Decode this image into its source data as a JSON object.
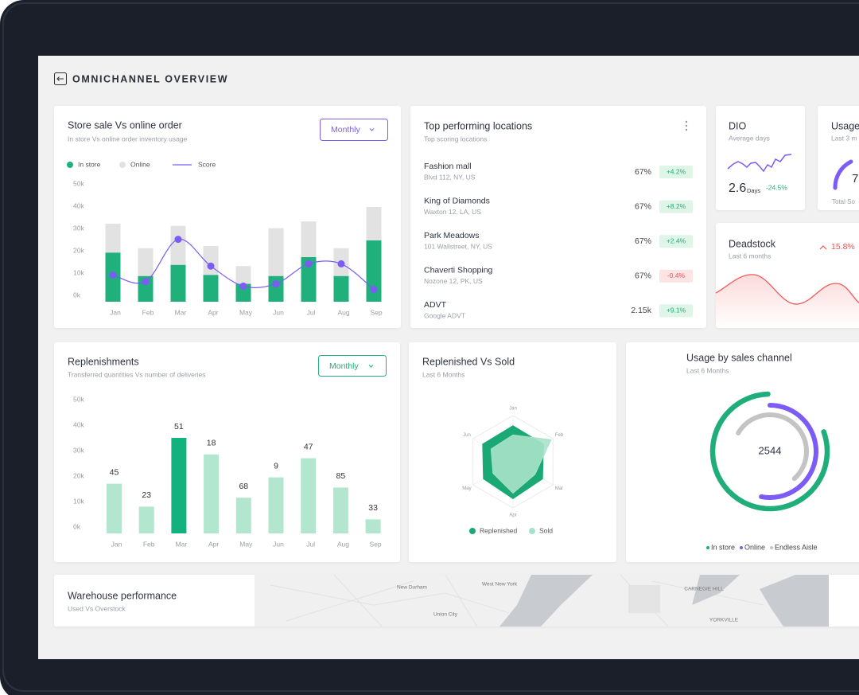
{
  "header": {
    "title": "OMNICHANNEL OVERVIEW"
  },
  "store_sale": {
    "title": "Store sale Vs online order",
    "subtitle": "In store Vs online order inventory usage",
    "dropdown": "Monthly",
    "chart": {
      "type": "bar",
      "categories": [
        "Jan",
        "Feb",
        "Mar",
        "Apr",
        "May",
        "Jun",
        "Jul",
        "Aug",
        "Sep"
      ],
      "series": [
        {
          "name": "In store",
          "color": "#20b07c",
          "values": [
            22000,
            11500,
            16500,
            12000,
            8000,
            11500,
            20000,
            11500,
            27500
          ]
        },
        {
          "name": "Online",
          "color": "#e2e2e2",
          "values": [
            35000,
            24000,
            34000,
            25000,
            16000,
            33000,
            36000,
            24000,
            42500
          ]
        },
        {
          "name": "Score",
          "color": "#7c5cf5",
          "type": "line",
          "values": [
            12000,
            9000,
            28000,
            16000,
            7000,
            8000,
            17000,
            17000,
            5500
          ]
        }
      ],
      "ylim": [
        0,
        50000
      ],
      "yticks": [
        {
          "value": 0,
          "label": "0k"
        },
        {
          "value": 10000,
          "label": "10k"
        },
        {
          "value": 20000,
          "label": "20k"
        },
        {
          "value": 30000,
          "label": "30k"
        },
        {
          "value": 40000,
          "label": "40k"
        },
        {
          "value": 50000,
          "label": "50k"
        }
      ]
    }
  },
  "top_locations": {
    "title": "Top performing locations",
    "subtitle": "Top scoring locations",
    "items": [
      {
        "name": "Fashion mall",
        "address": "Blvd 112, NY, US",
        "score": "67%",
        "change": "+4.2%"
      },
      {
        "name": "King of Diamonds",
        "address": "Waxton 12, LA, US",
        "score": "67%",
        "change": "+8.2%"
      },
      {
        "name": "Park Meadows",
        "address": "101 Wallstreet, NY, US",
        "score": "67%",
        "change": "+2.4%"
      },
      {
        "name": "Chaverti Shopping",
        "address": "Nozone 12, PK, US",
        "score": "67%",
        "change": "-0.4%"
      },
      {
        "name": "ADVT",
        "address": "Google ADVT",
        "score": "2.15k",
        "change": "+9.1%"
      }
    ]
  },
  "dio": {
    "title": "DIO",
    "subtitle": "Average days",
    "value": "2.6",
    "unit": "Days",
    "change": "-24.5%"
  },
  "usage": {
    "title": "Usage",
    "subtitle": "Last 3 m",
    "value": "7",
    "footer": "Total So"
  },
  "deadstock": {
    "title": "Deadstock",
    "subtitle": "Last 6 months",
    "change": "15.8%"
  },
  "replenishments": {
    "title": "Replenishments",
    "subtitle": "Transferred quantities Vs number of deliveries",
    "dropdown": "Monthly",
    "chart": {
      "type": "bar",
      "categories": [
        "Jan",
        "Feb",
        "Mar",
        "Apr",
        "May",
        "Jun",
        "Jul",
        "Aug",
        "Sep"
      ],
      "values": [
        19500,
        10500,
        37500,
        31000,
        14000,
        22000,
        29500,
        18000,
        5500
      ],
      "data_labels": [
        "45",
        "23",
        "51",
        "18",
        "68",
        "9",
        "47",
        "85",
        "33"
      ],
      "color": "#b3e6cf",
      "highlight": "Mar",
      "highlight_color": "#12b27e",
      "ylim": [
        0,
        50000
      ],
      "yticks": [
        {
          "value": 0,
          "label": "0k"
        },
        {
          "value": 10000,
          "label": "10k"
        },
        {
          "value": 20000,
          "label": "20k"
        },
        {
          "value": 30000,
          "label": "30k"
        },
        {
          "value": 40000,
          "label": "40k"
        },
        {
          "value": 50000,
          "label": "50k"
        }
      ]
    }
  },
  "replenished_vs_sold": {
    "title": "Replenished Vs Sold",
    "subtitle": "Last 6 Months",
    "chart": {
      "type": "radar",
      "categories": [
        "Jan",
        "Feb",
        "Mar",
        "Apr",
        "May",
        "Jun"
      ],
      "series": [
        {
          "name": "Replenished",
          "color": "#1aa874",
          "values": [
            78,
            76,
            74,
            80,
            74,
            76
          ]
        },
        {
          "name": "Sold",
          "color": "#a8e2c9",
          "values": [
            58,
            95,
            55,
            68,
            50,
            55
          ]
        }
      ],
      "rlim": [
        0,
        100
      ]
    }
  },
  "sales_channel": {
    "title": "Usage by sales channel",
    "subtitle": "Last 6 Months",
    "total": "2544",
    "chart": {
      "type": "rings",
      "series": [
        {
          "name": "In store",
          "color": "#1fae7a",
          "value": 80
        },
        {
          "name": "Online",
          "color": "#7c5cf5",
          "value": 53
        },
        {
          "name": "Endless Aisle",
          "color": "#c4c4c4",
          "value": 55
        }
      ],
      "max": 100
    }
  },
  "warehouse": {
    "title": "Warehouse performance",
    "subtitle": "Used Vs Overstock",
    "map_labels": [
      "New Durham",
      "West New York",
      "Union City",
      "CARNEGIE HILL",
      "YORKVILLE"
    ]
  }
}
